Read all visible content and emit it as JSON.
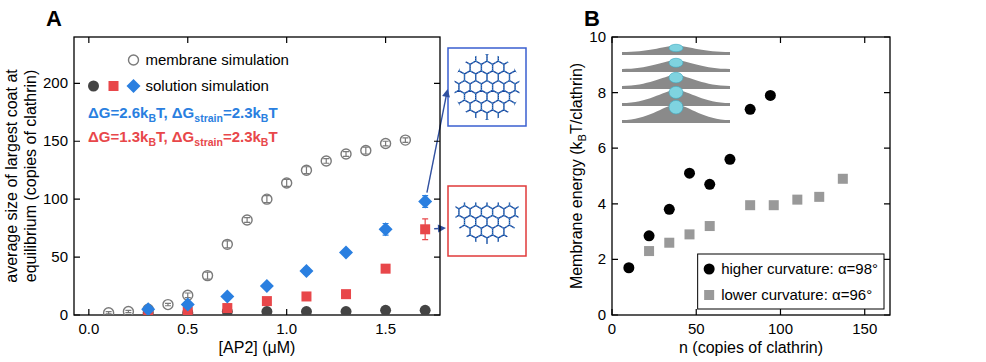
{
  "chart_data": [
    {
      "type": "scatter",
      "panel_label": "A",
      "xlabel": "[AP2] (μM)",
      "ylabel": "average size of largest coat at equilibrium (copies of clathrin)",
      "xlim": [
        -0.075,
        1.775
      ],
      "xticks": [
        {
          "value": 0,
          "label": "0.0"
        },
        {
          "value": 0.5,
          "label": "0.5"
        },
        {
          "value": 1,
          "label": "1.0"
        },
        {
          "value": 1.5,
          "label": "1.5"
        }
      ],
      "ylim": [
        0,
        240
      ],
      "yticks": [
        0,
        50,
        100,
        150,
        200
      ],
      "legend": "upper left",
      "annotations": [
        {
          "text_parts": [
            "ΔG=2.6k",
            "B",
            "T, ΔG",
            "strain",
            "=2.3k",
            "B",
            "T"
          ],
          "color": "#2a7fe0"
        },
        {
          "text_parts": [
            "ΔG=1.3k",
            "B",
            "T, ΔG",
            "strain",
            "=2.3k",
            "B",
            "T"
          ],
          "color": "#e8474a"
        }
      ],
      "series": [
        {
          "name": "membrane simulation",
          "color": "#7a7a7a",
          "marker": "open circle",
          "x": [
            0.1,
            0.2,
            0.3,
            0.4,
            0.5,
            0.6,
            0.7,
            0.8,
            0.9,
            1.0,
            1.1,
            1.2,
            1.3,
            1.4,
            1.5,
            1.6
          ],
          "values": [
            2,
            3,
            5,
            9,
            17,
            34,
            61,
            82,
            100,
            114,
            125,
            133,
            139,
            142,
            148,
            151
          ],
          "errors": [
            1,
            1,
            1,
            1,
            2,
            3,
            3,
            2,
            3,
            3,
            3,
            2,
            2,
            3,
            2,
            2
          ]
        },
        {
          "name": "solution simulation",
          "color": "#444444",
          "marker": "circle",
          "x": [
            0.3,
            0.5,
            0.7,
            0.9,
            1.1,
            1.3,
            1.5,
            1.7
          ],
          "values": [
            2,
            2,
            3,
            3,
            3,
            3,
            4,
            4
          ]
        },
        {
          "name": "solution simulation",
          "color": "#e8474a",
          "marker": "square",
          "x": [
            0.3,
            0.5,
            0.7,
            0.9,
            1.1,
            1.3,
            1.5,
            1.7
          ],
          "values": [
            2,
            3,
            6,
            12,
            16,
            18,
            40,
            74
          ],
          "errors": [
            0.5,
            1,
            1,
            1,
            2,
            2,
            3,
            9
          ]
        },
        {
          "name": "solution simulation",
          "color": "#2a7fe0",
          "marker": "diamond",
          "x": [
            0.3,
            0.5,
            0.7,
            0.9,
            1.1,
            1.3,
            1.5,
            1.7
          ],
          "values": [
            5,
            9,
            16,
            25,
            38,
            54,
            74,
            98
          ],
          "errors": [
            1,
            1,
            1,
            2,
            3,
            2,
            5,
            5
          ]
        }
      ]
    },
    {
      "type": "scatter",
      "panel_label": "B",
      "xlabel": "n (copies of clathrin)",
      "ylabel": [
        "Membrane energy (k",
        "B",
        "T/clathrin)"
      ],
      "xlim": [
        0,
        165
      ],
      "xticks": [
        0,
        50,
        100,
        150
      ],
      "ylim": [
        0,
        10
      ],
      "yticks": [
        0,
        2,
        4,
        6,
        8,
        10
      ],
      "legend": "lower right",
      "series": [
        {
          "name": "higher curvature: α=98°",
          "color": "#000000",
          "marker": "circle",
          "x": [
            10,
            22,
            34,
            46,
            58,
            70,
            82,
            94
          ],
          "values": [
            1.7,
            2.85,
            3.8,
            5.1,
            4.7,
            5.6,
            7.4,
            7.9
          ]
        },
        {
          "name": "lower curvature: α=96°",
          "color": "#999999",
          "marker": "square",
          "x": [
            22,
            34,
            46,
            58,
            82,
            96,
            110,
            123,
            137
          ],
          "values": [
            2.3,
            2.6,
            2.9,
            3.2,
            3.95,
            3.95,
            4.15,
            4.25,
            4.9
          ]
        }
      ]
    }
  ]
}
